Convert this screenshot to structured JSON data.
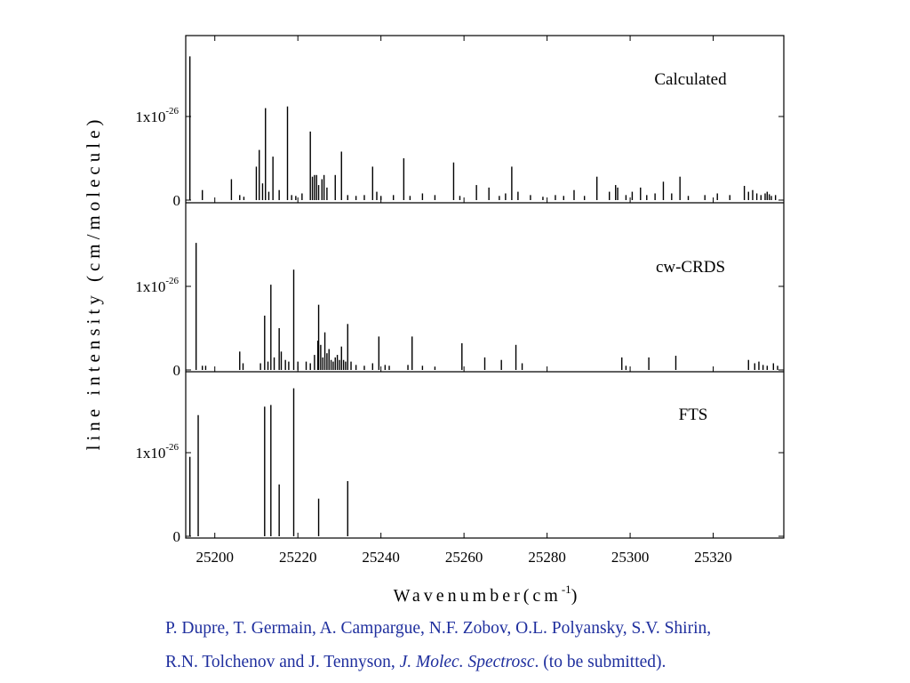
{
  "chart_data": {
    "type": "bar",
    "xlabel": "Wavenumber(cm",
    "xlabel_sup": "-1",
    "xlabel_close": ")",
    "ylabel": "line intensity (cm/molecule)",
    "xlim": [
      25193,
      25337
    ],
    "xticks": [
      25200,
      25220,
      25240,
      25260,
      25280,
      25300,
      25320
    ],
    "ytick_labels": [
      {
        "value": 0,
        "label": "0"
      },
      {
        "value": 1,
        "label": "1x10",
        "sup": "-26"
      }
    ],
    "ylim": [
      0,
      2.0
    ],
    "panels": [
      {
        "name": "Calculated",
        "lines": [
          [
            25194.0,
            1.72
          ],
          [
            25197.0,
            0.12
          ],
          [
            25204.0,
            0.25
          ],
          [
            25206.0,
            0.06
          ],
          [
            25207.0,
            0.04
          ],
          [
            25210.0,
            0.4
          ],
          [
            25210.7,
            0.6
          ],
          [
            25211.5,
            0.2
          ],
          [
            25212.2,
            1.1
          ],
          [
            25213.0,
            0.1
          ],
          [
            25214.0,
            0.52
          ],
          [
            25215.5,
            0.12
          ],
          [
            25217.5,
            1.12
          ],
          [
            25218.5,
            0.06
          ],
          [
            25219.5,
            0.05
          ],
          [
            25221.0,
            0.08
          ],
          [
            25223.0,
            0.82
          ],
          [
            25223.5,
            0.28
          ],
          [
            25224.0,
            0.3
          ],
          [
            25224.5,
            0.3
          ],
          [
            25225.0,
            0.18
          ],
          [
            25225.8,
            0.25
          ],
          [
            25226.3,
            0.3
          ],
          [
            25227.0,
            0.15
          ],
          [
            25229.0,
            0.3
          ],
          [
            25230.5,
            0.58
          ],
          [
            25232.0,
            0.06
          ],
          [
            25234.0,
            0.05
          ],
          [
            25236.0,
            0.06
          ],
          [
            25238.0,
            0.4
          ],
          [
            25239.0,
            0.1
          ],
          [
            25240.0,
            0.05
          ],
          [
            25243.0,
            0.06
          ],
          [
            25245.5,
            0.5
          ],
          [
            25247.0,
            0.05
          ],
          [
            25250.0,
            0.08
          ],
          [
            25253.0,
            0.06
          ],
          [
            25257.5,
            0.45
          ],
          [
            25259.0,
            0.05
          ],
          [
            25263.0,
            0.18
          ],
          [
            25266.0,
            0.15
          ],
          [
            25268.5,
            0.05
          ],
          [
            25270.0,
            0.08
          ],
          [
            25271.5,
            0.4
          ],
          [
            25273.0,
            0.1
          ],
          [
            25276.0,
            0.06
          ],
          [
            25279.0,
            0.04
          ],
          [
            25282.0,
            0.06
          ],
          [
            25284.0,
            0.05
          ],
          [
            25286.5,
            0.12
          ],
          [
            25289.0,
            0.05
          ],
          [
            25292.0,
            0.28
          ],
          [
            25295.0,
            0.1
          ],
          [
            25296.5,
            0.18
          ],
          [
            25297.0,
            0.15
          ],
          [
            25299.0,
            0.06
          ],
          [
            25300.5,
            0.1
          ],
          [
            25302.5,
            0.15
          ],
          [
            25304.0,
            0.06
          ],
          [
            25306.0,
            0.08
          ],
          [
            25308.0,
            0.22
          ],
          [
            25310.0,
            0.08
          ],
          [
            25312.0,
            0.28
          ],
          [
            25314.0,
            0.05
          ],
          [
            25318.0,
            0.06
          ],
          [
            25321.0,
            0.08
          ],
          [
            25324.0,
            0.06
          ],
          [
            25327.5,
            0.17
          ],
          [
            25328.5,
            0.1
          ],
          [
            25329.5,
            0.12
          ],
          [
            25330.5,
            0.08
          ],
          [
            25331.5,
            0.06
          ],
          [
            25332.5,
            0.08
          ],
          [
            25333.0,
            0.1
          ],
          [
            25333.5,
            0.07
          ],
          [
            25334.0,
            0.05
          ],
          [
            25335.0,
            0.06
          ]
        ]
      },
      {
        "name": "cw-CRDS",
        "lines": [
          [
            25195.5,
            1.52
          ],
          [
            25197.0,
            0.05
          ],
          [
            25197.8,
            0.05
          ],
          [
            25206.0,
            0.22
          ],
          [
            25206.8,
            0.08
          ],
          [
            25211.0,
            0.08
          ],
          [
            25212.0,
            0.65
          ],
          [
            25212.8,
            0.1
          ],
          [
            25213.5,
            1.02
          ],
          [
            25214.3,
            0.15
          ],
          [
            25215.5,
            0.5
          ],
          [
            25216.0,
            0.22
          ],
          [
            25217.0,
            0.12
          ],
          [
            25217.8,
            0.1
          ],
          [
            25219.0,
            1.2
          ],
          [
            25220.0,
            0.1
          ],
          [
            25222.0,
            0.1
          ],
          [
            25223.0,
            0.08
          ],
          [
            25224.0,
            0.18
          ],
          [
            25224.8,
            0.35
          ],
          [
            25225.0,
            0.78
          ],
          [
            25225.5,
            0.3
          ],
          [
            25226.0,
            0.15
          ],
          [
            25226.5,
            0.45
          ],
          [
            25227.0,
            0.2
          ],
          [
            25227.5,
            0.25
          ],
          [
            25228.0,
            0.12
          ],
          [
            25228.5,
            0.1
          ],
          [
            25229.0,
            0.15
          ],
          [
            25229.5,
            0.18
          ],
          [
            25230.0,
            0.12
          ],
          [
            25230.5,
            0.28
          ],
          [
            25231.0,
            0.12
          ],
          [
            25231.5,
            0.1
          ],
          [
            25232.0,
            0.55
          ],
          [
            25232.8,
            0.1
          ],
          [
            25234.0,
            0.06
          ],
          [
            25236.0,
            0.05
          ],
          [
            25238.0,
            0.08
          ],
          [
            25239.5,
            0.4
          ],
          [
            25241.0,
            0.06
          ],
          [
            25242.0,
            0.05
          ],
          [
            25246.5,
            0.06
          ],
          [
            25247.5,
            0.4
          ],
          [
            25250.0,
            0.05
          ],
          [
            25253.0,
            0.04
          ],
          [
            25259.5,
            0.32
          ],
          [
            25265.0,
            0.15
          ],
          [
            25269.0,
            0.12
          ],
          [
            25272.5,
            0.3
          ],
          [
            25274.0,
            0.08
          ],
          [
            25298.0,
            0.15
          ],
          [
            25299.0,
            0.05
          ],
          [
            25304.5,
            0.15
          ],
          [
            25311.0,
            0.17
          ],
          [
            25328.5,
            0.12
          ],
          [
            25330.0,
            0.08
          ],
          [
            25331.0,
            0.1
          ],
          [
            25332.0,
            0.06
          ],
          [
            25333.0,
            0.05
          ],
          [
            25334.5,
            0.08
          ],
          [
            25335.5,
            0.05
          ]
        ]
      },
      {
        "name": "FTS",
        "lines": [
          [
            25194.0,
            0.95
          ],
          [
            25196.0,
            1.45
          ],
          [
            25212.0,
            1.55
          ],
          [
            25213.5,
            1.57
          ],
          [
            25215.5,
            0.62
          ],
          [
            25219.0,
            1.77
          ],
          [
            25225.0,
            0.45
          ],
          [
            25232.0,
            0.66
          ]
        ]
      }
    ]
  },
  "citation": {
    "line1": "P. Dupre, T. Germain, A. Campargue, N.F. Zobov, O.L. Polyansky, S.V. Shirin,",
    "line2_authors": "R.N. Tolchenov  and J. Tennyson",
    "line2_sep": ", ",
    "journal": "J. Molec. Spectrosc",
    "line2_tail": ". (to be submitted)."
  }
}
